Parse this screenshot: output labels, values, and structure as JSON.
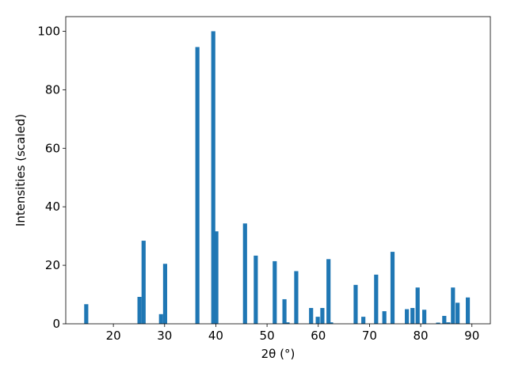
{
  "chart_data": {
    "type": "bar",
    "xlabel": "2θ (°)",
    "ylabel": "Intensities (scaled)",
    "x": [
      14.7,
      25.1,
      25.9,
      29.3,
      30.1,
      36.4,
      39.5,
      40.1,
      45.7,
      47.8,
      51.5,
      53.4,
      54.0,
      55.7,
      58.6,
      59.9,
      60.8,
      62.0,
      62.5,
      67.3,
      68.8,
      71.3,
      72.9,
      74.5,
      77.3,
      78.4,
      79.4,
      80.7,
      83.4,
      84.6,
      85.4,
      86.3,
      87.2,
      89.2
    ],
    "values": [
      6.7,
      9.2,
      28.4,
      3.3,
      20.5,
      94.6,
      100,
      31.6,
      34.3,
      23.3,
      21.4,
      8.4,
      0.5,
      18,
      5.4,
      2.4,
      5.4,
      22.1,
      0.5,
      13.3,
      2.4,
      16.8,
      4.3,
      24.6,
      5.0,
      5.4,
      12.4,
      4.8,
      0.4,
      2.7,
      0.5,
      12.4,
      7.2,
      9.0
    ],
    "color": "#1f77b4",
    "xlim": [
      10.7,
      93.6
    ],
    "xticks": [
      20,
      30,
      40,
      50,
      60,
      70,
      80,
      90
    ],
    "ylim": [
      0,
      105
    ],
    "yticks": [
      0,
      20,
      40,
      60,
      80,
      100
    ]
  }
}
